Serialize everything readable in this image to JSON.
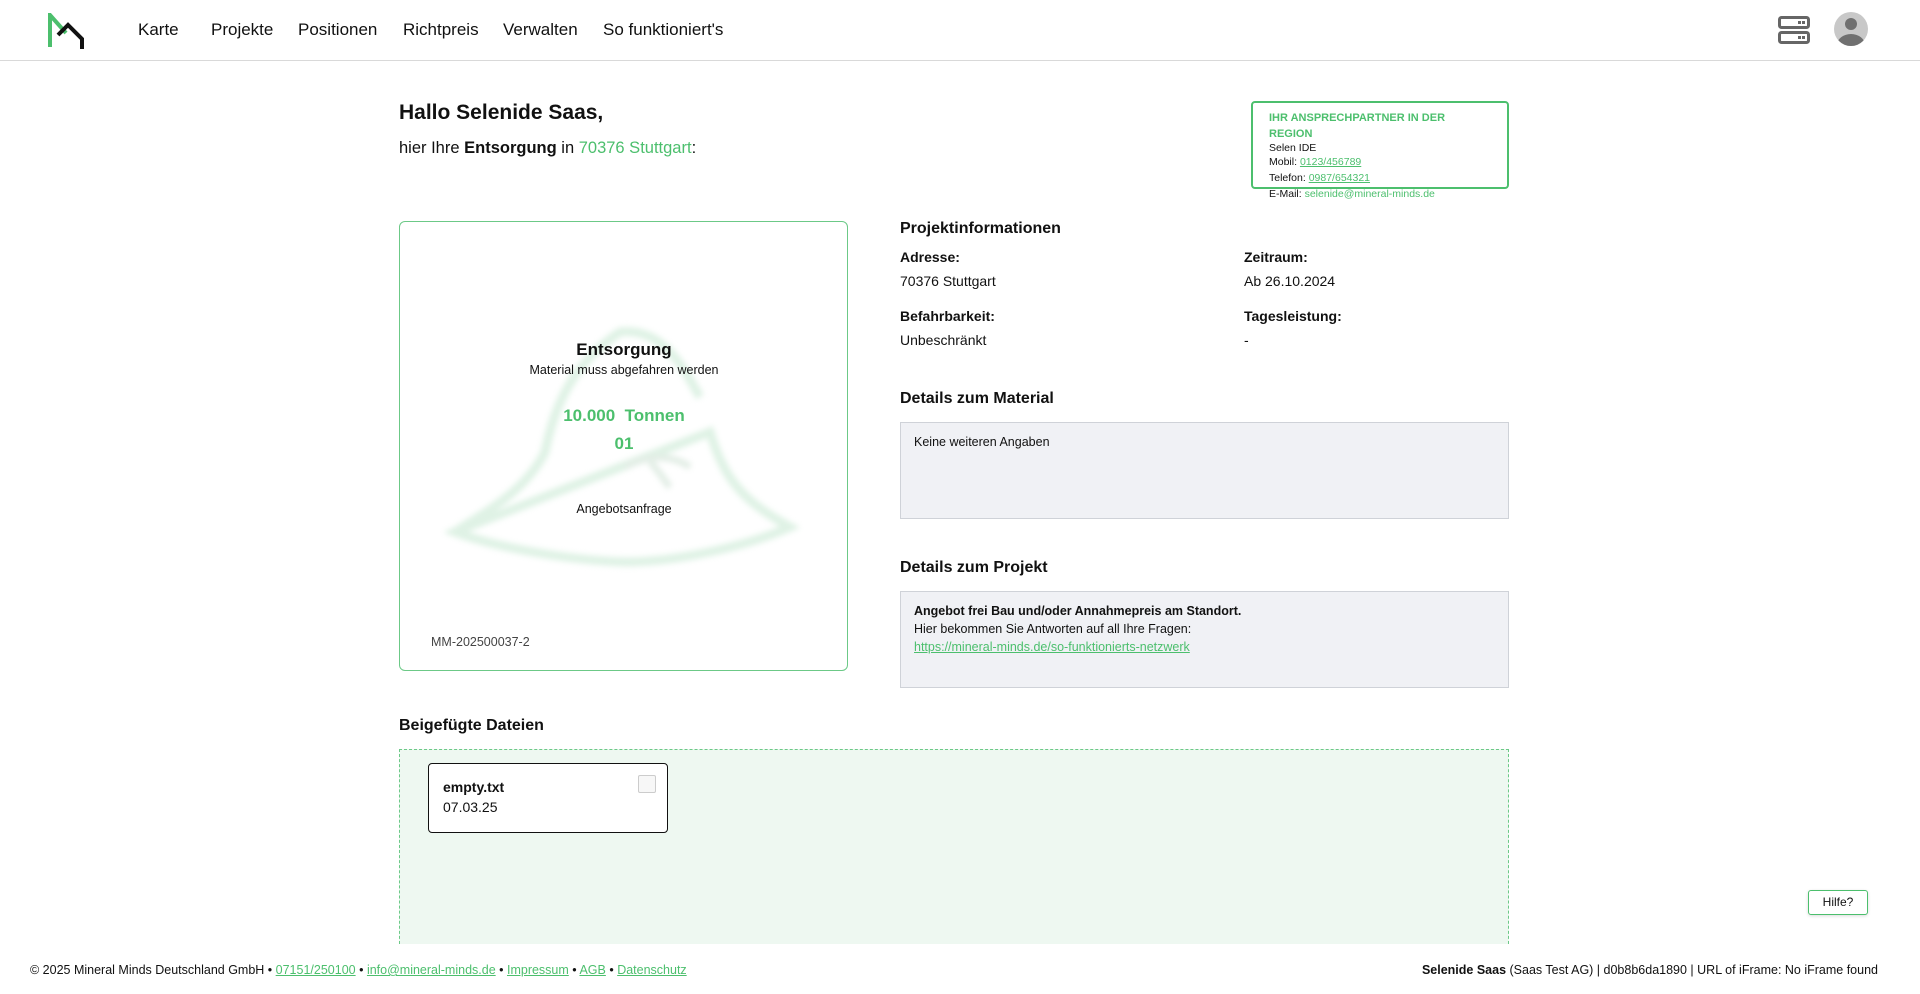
{
  "header": {
    "logo": "MM",
    "nav": [
      "Karte",
      "Projekte",
      "Positionen",
      "Richtpreis",
      "Verwalten",
      "So funktioniert's"
    ],
    "icons": [
      "server-icon",
      "avatar-icon"
    ]
  },
  "greeting": {
    "hello": "Hallo Selenide Saas,",
    "prefix": "hier Ihre ",
    "type": "Entsorgung",
    "mid": " in ",
    "location": "70376 Stuttgart",
    "suffix": ":"
  },
  "contact": {
    "title": "IHR ANSPRECHPARTNER IN DER REGION",
    "name": "Selen IDE",
    "mobil_label": "Mobil: ",
    "mobil": "0123/456789",
    "telefon_label": "Telefon: ",
    "telefon": "0987/654321",
    "email_label": "E-Mail: ",
    "email": "selenide@mineral-minds.de"
  },
  "card": {
    "title": "Entsorgung",
    "subtitle": "Material muss abgefahren werden",
    "amount": "10.000  Tonnen",
    "code": "01",
    "status": "Angebotsanfrage",
    "id": "MM-202500037-2",
    "accent": "#4cbf6d"
  },
  "project_info": {
    "heading": "Projektinformationen",
    "fields": [
      {
        "label": "Adresse:",
        "value": "70376 Stuttgart"
      },
      {
        "label": "Zeitraum:",
        "value": "Ab 26.10.2024"
      },
      {
        "label": "Befahrbarkeit:",
        "value": "Unbeschränkt"
      },
      {
        "label": "Tagesleistung:",
        "value": "-"
      }
    ]
  },
  "material": {
    "heading": "Details zum Material",
    "text": "Keine weiteren Angaben"
  },
  "project": {
    "heading": "Details zum Projekt",
    "line1": "Angebot frei Bau und/oder Annahmepreis am Standort.",
    "line2": "Hier bekommen Sie Antworten auf all Ihre Fragen:",
    "link": "https://mineral-minds.de/so-funktionierts-netzwerk"
  },
  "files": {
    "heading": "Beigefügte Dateien",
    "items": [
      {
        "name": "empty.txt",
        "date": "07.03.25",
        "selected": false
      }
    ]
  },
  "help": "Hilfe?",
  "footer": {
    "copyright": "© 2025 Mineral Minds Deutschland GmbH",
    "phone": "07151/250100",
    "email": "info@mineral-minds.de",
    "impressum": "Impressum",
    "agb": "AGB",
    "datenschutz": "Datenschutz",
    "sep": " • ",
    "user": "Selenide Saas",
    "rest": " (Saas Test AG) | d0b8b6da1890 | URL of iFrame: No iFrame found"
  }
}
